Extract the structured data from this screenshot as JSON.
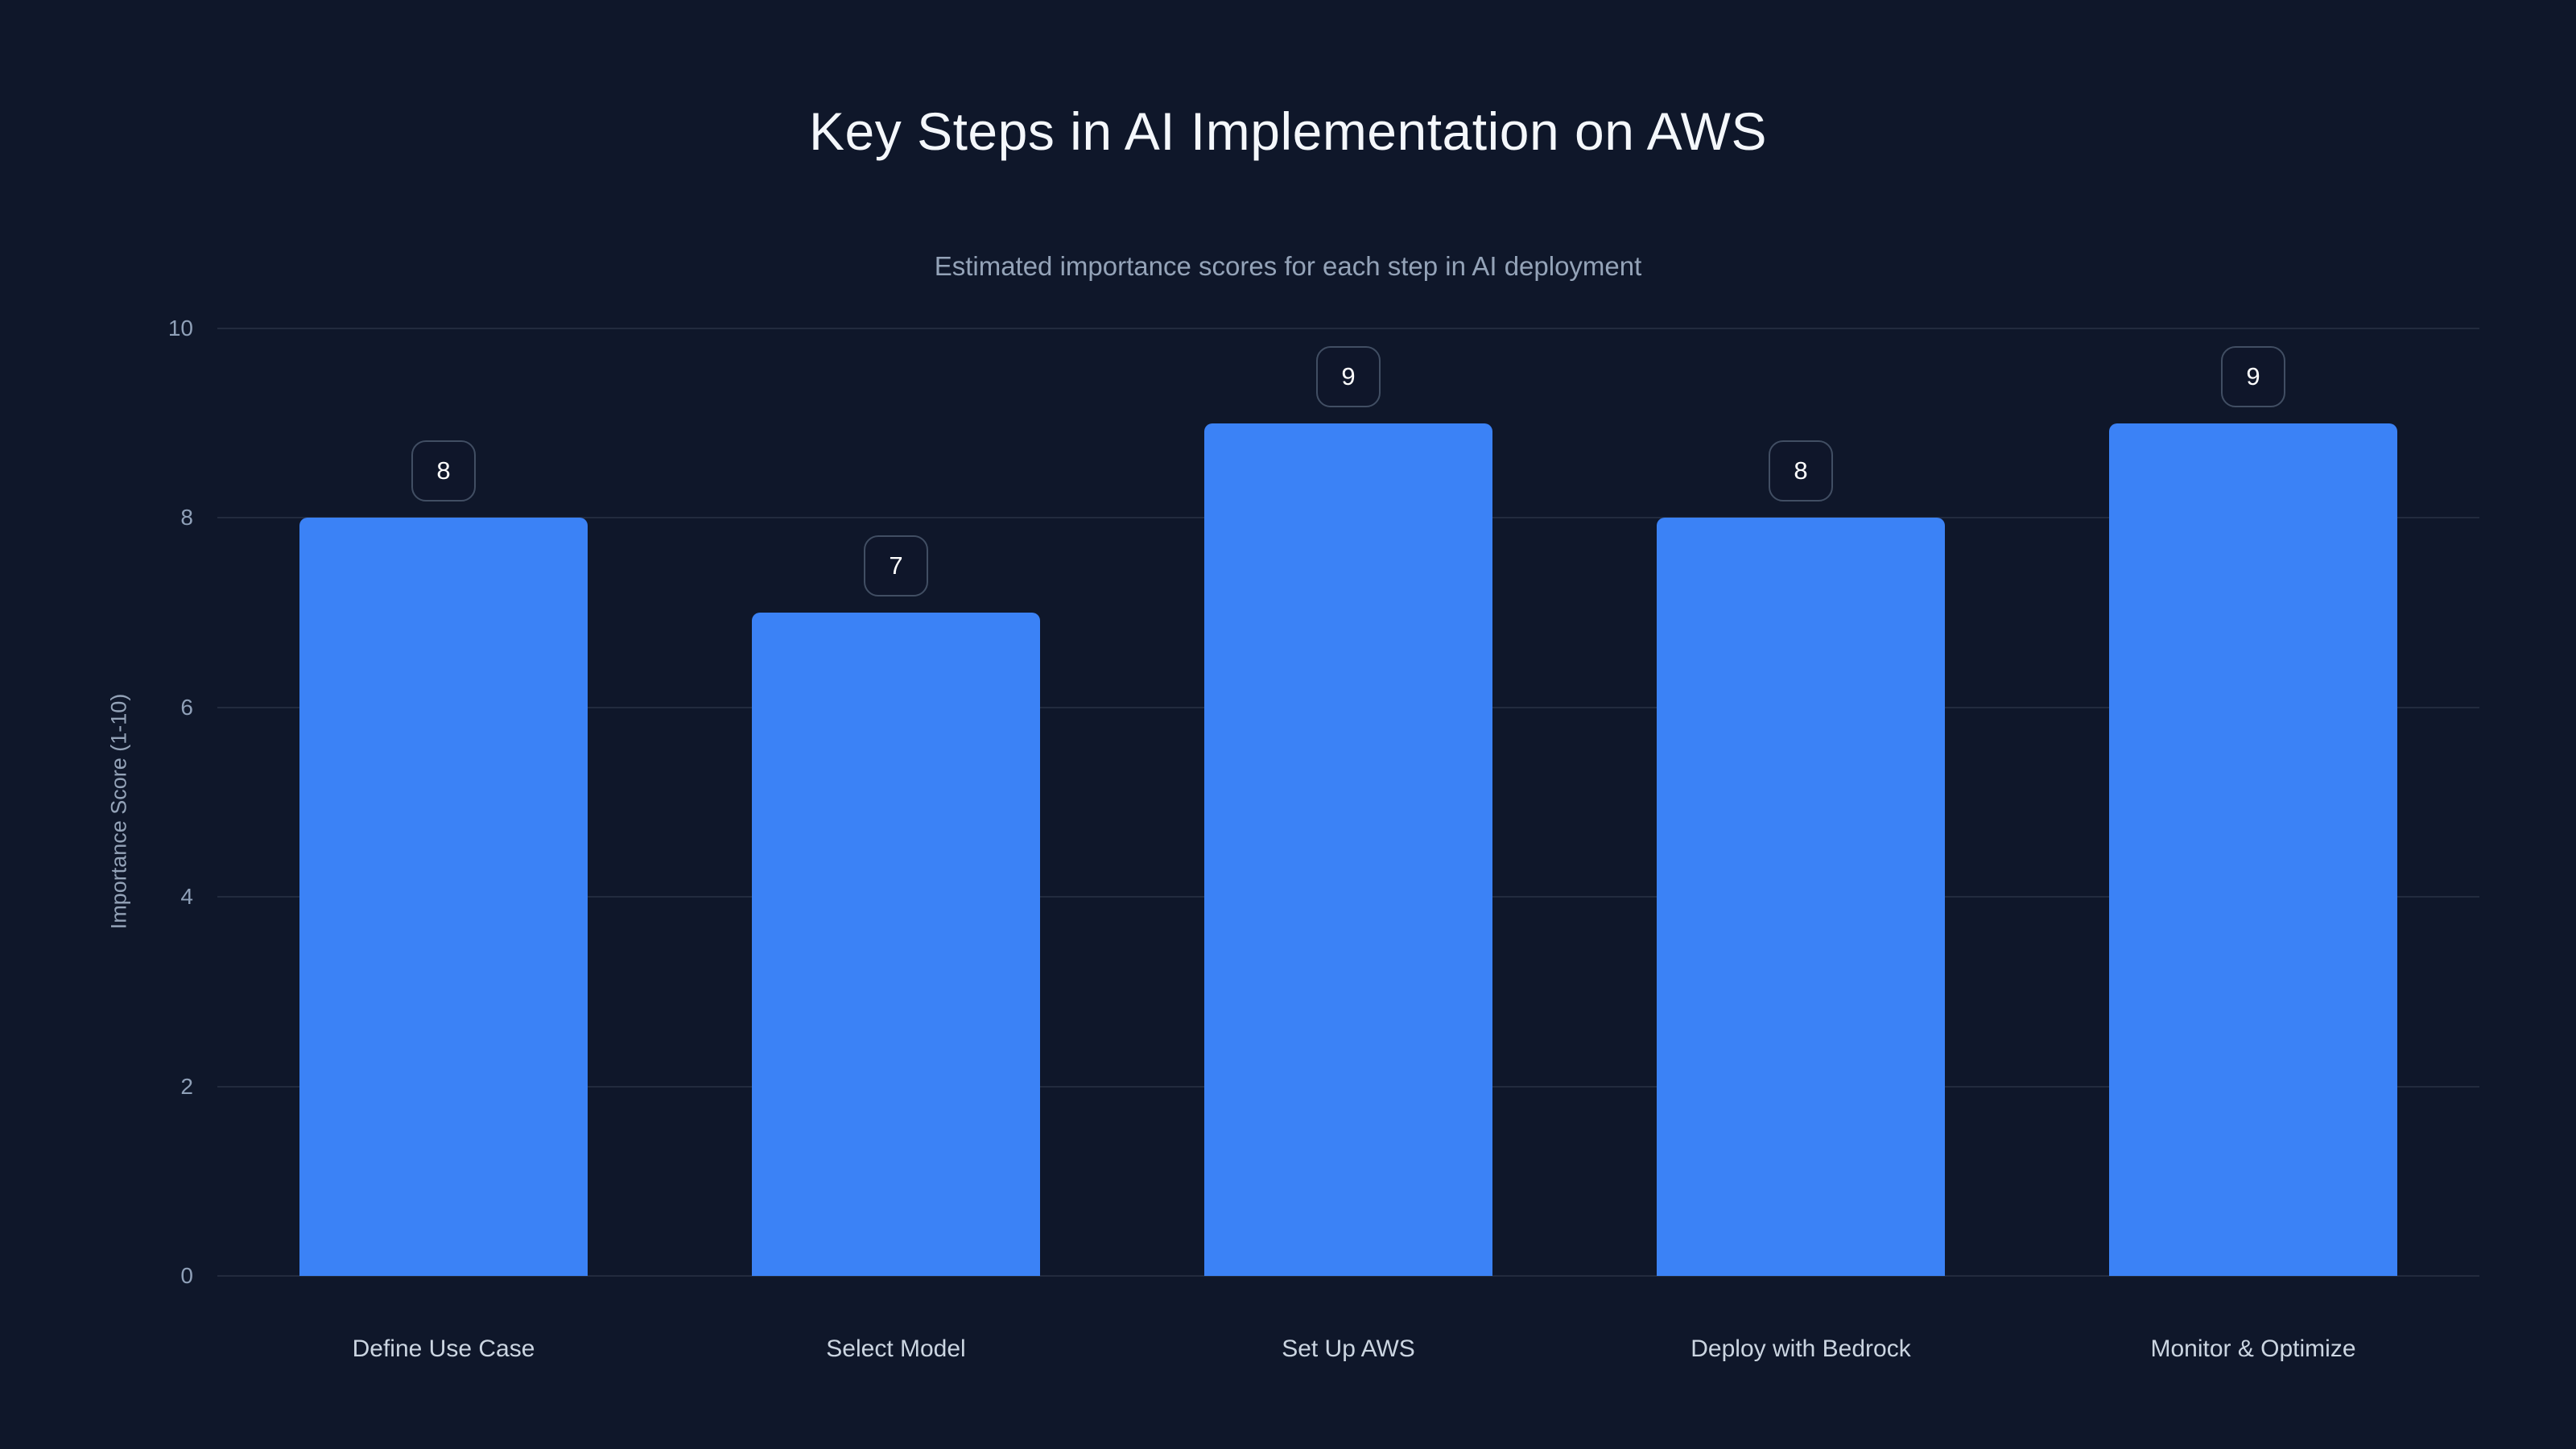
{
  "chart_data": {
    "type": "bar",
    "title": "Key Steps in AI Implementation on AWS",
    "subtitle": "Estimated importance scores for each step in AI deployment",
    "ylabel": "Importance Score (1-10)",
    "xlabel": "",
    "categories": [
      "Define Use Case",
      "Select Model",
      "Set Up AWS",
      "Deploy with Bedrock",
      "Monitor & Optimize"
    ],
    "values": [
      8,
      7,
      9,
      8,
      9
    ],
    "value_labels": [
      "8",
      "7",
      "9",
      "8",
      "9"
    ],
    "yticks": [
      0,
      2,
      4,
      6,
      8,
      10
    ],
    "ylim": [
      0,
      10
    ],
    "grid": true,
    "legend": "none",
    "value_label_style": "rounded badge above bar",
    "colors": {
      "background": "#0f172a",
      "bar": "#3b82f6",
      "title_text": "#f4f7fb",
      "subtitle_text": "#94a3b8",
      "axis_tick_text": "#8fa0b8",
      "category_text": "#cbd5e1",
      "gridline": "rgba(148,163,184,0.15)",
      "badge_border": "#414e63",
      "badge_text": "#ffffff"
    }
  }
}
